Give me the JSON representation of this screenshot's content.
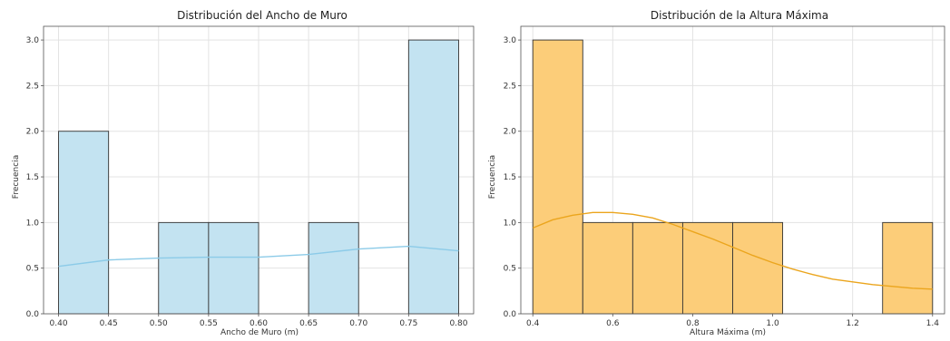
{
  "chart_data": [
    {
      "type": "bar",
      "title": "Distribución del Ancho de Muro",
      "xlabel": "Ancho de Muro (m)",
      "ylabel": "Frecuencia",
      "xlim": [
        0.385,
        0.815
      ],
      "ylim": [
        0,
        3.15
      ],
      "xticks": [
        "0.40",
        "0.45",
        "0.50",
        "0.55",
        "0.60",
        "0.65",
        "0.70",
        "0.75",
        "0.80"
      ],
      "yticks": [
        "0.0",
        "0.5",
        "1.0",
        "1.5",
        "2.0",
        "2.5",
        "3.0"
      ],
      "bins": [
        {
          "x0": 0.4,
          "x1": 0.45,
          "count": 2
        },
        {
          "x0": 0.45,
          "x1": 0.5,
          "count": 0
        },
        {
          "x0": 0.5,
          "x1": 0.55,
          "count": 1
        },
        {
          "x0": 0.55,
          "x1": 0.6,
          "count": 1
        },
        {
          "x0": 0.6,
          "x1": 0.65,
          "count": 0
        },
        {
          "x0": 0.65,
          "x1": 0.7,
          "count": 1
        },
        {
          "x0": 0.7,
          "x1": 0.75,
          "count": 0
        },
        {
          "x0": 0.75,
          "x1": 0.8,
          "count": 3
        }
      ],
      "kde": {
        "x": [
          0.4,
          0.45,
          0.5,
          0.55,
          0.6,
          0.65,
          0.7,
          0.75,
          0.8
        ],
        "y": [
          0.52,
          0.59,
          0.61,
          0.62,
          0.62,
          0.65,
          0.71,
          0.74,
          0.69
        ]
      },
      "colors": {
        "fill": "#c3e3f1",
        "line": "#8ccbe8"
      },
      "grid": true
    },
    {
      "type": "bar",
      "title": "Distribución de la Altura Máxima",
      "xlabel": "Altura Máxima (m)",
      "ylabel": "Frecuencia",
      "xlim": [
        0.37,
        1.43
      ],
      "ylim": [
        0,
        3.15
      ],
      "xticks": [
        "0.4",
        "0.6",
        "0.8",
        "1.0",
        "1.2",
        "1.4"
      ],
      "yticks": [
        "0.0",
        "0.5",
        "1.0",
        "1.5",
        "2.0",
        "2.5",
        "3.0"
      ],
      "bins": [
        {
          "x0": 0.4,
          "x1": 0.525,
          "count": 3
        },
        {
          "x0": 0.525,
          "x1": 0.65,
          "count": 1
        },
        {
          "x0": 0.65,
          "x1": 0.775,
          "count": 1
        },
        {
          "x0": 0.775,
          "x1": 0.9,
          "count": 1
        },
        {
          "x0": 0.9,
          "x1": 1.025,
          "count": 1
        },
        {
          "x0": 1.025,
          "x1": 1.15,
          "count": 0
        },
        {
          "x0": 1.15,
          "x1": 1.275,
          "count": 0
        },
        {
          "x0": 1.275,
          "x1": 1.4,
          "count": 1
        }
      ],
      "kde": {
        "x": [
          0.4,
          0.45,
          0.5,
          0.55,
          0.6,
          0.65,
          0.7,
          0.75,
          0.8,
          0.85,
          0.9,
          0.95,
          1.0,
          1.05,
          1.1,
          1.15,
          1.2,
          1.25,
          1.3,
          1.35,
          1.4
        ],
        "y": [
          0.94,
          1.03,
          1.08,
          1.11,
          1.11,
          1.09,
          1.05,
          0.98,
          0.9,
          0.82,
          0.73,
          0.64,
          0.56,
          0.49,
          0.43,
          0.38,
          0.35,
          0.32,
          0.3,
          0.28,
          0.27
        ]
      },
      "colors": {
        "fill": "#fccd79",
        "line": "#eba51d"
      },
      "grid": true
    }
  ]
}
